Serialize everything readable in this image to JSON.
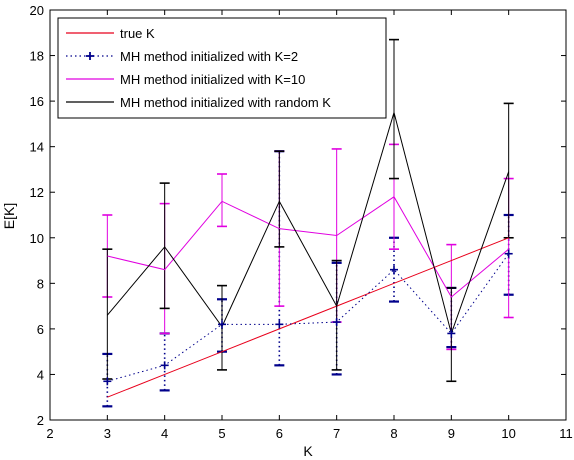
{
  "chart_data": {
    "type": "line",
    "xlabel": "K",
    "ylabel": "E[K]",
    "xlim": [
      2,
      11
    ],
    "ylim": [
      2,
      20
    ],
    "xticks": [
      2,
      3,
      4,
      5,
      6,
      7,
      8,
      9,
      10,
      11
    ],
    "yticks": [
      2,
      4,
      6,
      8,
      10,
      12,
      14,
      16,
      18,
      20
    ],
    "grid": false,
    "legend_position": "top-left",
    "series": [
      {
        "name": "true K",
        "color": "#e8001c",
        "style": "solid",
        "marker": "none",
        "x": [
          3,
          4,
          5,
          6,
          7,
          8,
          9,
          10
        ],
        "y": [
          3,
          4,
          5,
          6,
          7,
          8,
          9,
          10
        ]
      },
      {
        "name": "MH method initialized with K=2",
        "color": "#00008b",
        "style": "dotted",
        "marker": "plus",
        "x": [
          3,
          4,
          5,
          6,
          7,
          8,
          9,
          10
        ],
        "y": [
          3.7,
          4.4,
          6.2,
          6.2,
          6.3,
          8.6,
          5.8,
          9.3
        ],
        "err_low": [
          2.6,
          3.3,
          5.0,
          4.4,
          4.0,
          7.2,
          5.2,
          7.5
        ],
        "err_high": [
          4.9,
          5.8,
          7.3,
          13.8,
          8.9,
          10.0,
          7.8,
          11.0
        ]
      },
      {
        "name": "MH method initialized with K=10",
        "color": "#e000e0",
        "style": "solid",
        "marker": "none",
        "x": [
          3,
          4,
          5,
          6,
          7,
          8,
          9,
          10
        ],
        "y": [
          9.2,
          8.6,
          11.6,
          10.4,
          10.1,
          11.8,
          7.4,
          9.5
        ],
        "err_low": [
          7.4,
          5.8,
          10.5,
          7.0,
          6.3,
          9.5,
          5.1,
          6.5
        ],
        "err_high": [
          11.0,
          11.5,
          12.8,
          13.8,
          13.9,
          14.1,
          9.7,
          12.6
        ]
      },
      {
        "name": "MH method initialized with random K",
        "color": "#000000",
        "style": "solid",
        "marker": "none",
        "x": [
          3,
          4,
          5,
          6,
          7,
          8,
          9,
          10
        ],
        "y": [
          6.6,
          9.6,
          6.1,
          11.6,
          7.0,
          15.5,
          5.8,
          12.9
        ],
        "err_low": [
          3.8,
          6.9,
          4.2,
          9.6,
          4.2,
          12.6,
          3.7,
          10.0
        ],
        "err_high": [
          9.5,
          12.4,
          7.9,
          13.8,
          9.0,
          18.7,
          7.8,
          15.9
        ]
      }
    ]
  }
}
